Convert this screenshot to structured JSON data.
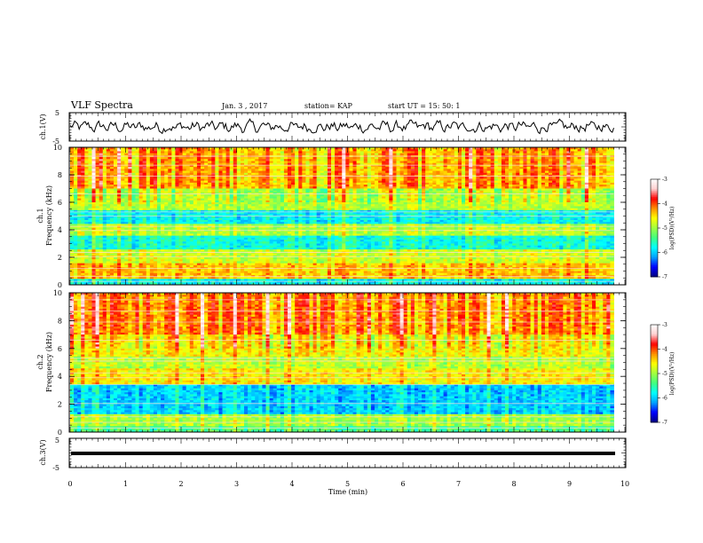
{
  "header": {
    "title": "VLF Spectra",
    "date": "Jan. 3 , 2017",
    "station": "station= KAP",
    "start": "start UT = 15: 50: 1"
  },
  "chart_data": [
    {
      "type": "line",
      "name": "ch1-waveform",
      "ylabel": "ch.1(V)",
      "ylim": [
        -5,
        5
      ],
      "yticks": [
        "5",
        "-5"
      ],
      "xlim": [
        0,
        10
      ],
      "x_coverage_min": [
        0,
        9.8
      ],
      "description_values": "noisy voltage trace fluctuating roughly between -2 and +2 V around 0"
    },
    {
      "type": "heatmap",
      "name": "ch1-spectrogram",
      "ylabel": "ch.1\nFrequency (kHz)",
      "ylim": [
        0,
        10
      ],
      "yticks": [
        "0",
        "2",
        "4",
        "6",
        "8",
        "10"
      ],
      "xlim": [
        0,
        10
      ],
      "x_coverage_min": [
        0,
        9.8
      ],
      "colorbar": {
        "label": "log(PSD)(V²/Hz)",
        "range": [
          -7,
          -3
        ],
        "ticks": [
          "-3",
          "-4",
          "-5",
          "-6",
          "-7"
        ]
      },
      "bands": [
        {
          "f_low": 0,
          "f_high": 0.4,
          "level": -5.8
        },
        {
          "f_low": 0.4,
          "f_high": 1.6,
          "level": -4.4
        },
        {
          "f_low": 1.6,
          "f_high": 2.6,
          "level": -4.8
        },
        {
          "f_low": 2.6,
          "f_high": 3.6,
          "level": -5.7
        },
        {
          "f_low": 3.6,
          "f_high": 4.4,
          "level": -4.9
        },
        {
          "f_low": 4.4,
          "f_high": 5.4,
          "level": -5.8
        },
        {
          "f_low": 5.4,
          "f_high": 7.0,
          "level": -4.9
        },
        {
          "f_low": 7.0,
          "f_high": 10.0,
          "level": -4.3
        }
      ],
      "lines_khz": [
        0.25,
        0.6,
        1.2,
        2.05,
        2.35,
        3.95,
        4.25,
        5.0,
        5.3,
        6.6,
        7.9,
        8.7,
        9.35
      ]
    },
    {
      "type": "heatmap",
      "name": "ch2-spectrogram",
      "ylabel": "ch.2\nFrequency (kHz)",
      "ylim": [
        0,
        10
      ],
      "yticks": [
        "0",
        "2",
        "4",
        "6",
        "8",
        "10"
      ],
      "xlim": [
        0,
        10
      ],
      "x_coverage_min": [
        0,
        9.8
      ],
      "colorbar": {
        "label": "log(PSD)(V²/Hz)",
        "range": [
          -7,
          -3
        ],
        "ticks": [
          "-3",
          "-4",
          "-5",
          "-6",
          "-7"
        ]
      },
      "bands": [
        {
          "f_low": 0,
          "f_high": 0.5,
          "level": -5.4
        },
        {
          "f_low": 0.5,
          "f_high": 1.3,
          "level": -5.0
        },
        {
          "f_low": 1.3,
          "f_high": 3.4,
          "level": -6.0
        },
        {
          "f_low": 3.4,
          "f_high": 4.6,
          "level": -4.6
        },
        {
          "f_low": 4.6,
          "f_high": 5.5,
          "level": -4.9
        },
        {
          "f_low": 5.5,
          "f_high": 7.0,
          "level": -4.6
        },
        {
          "f_low": 7.0,
          "f_high": 10.0,
          "level": -4.2
        }
      ],
      "lines_khz": [
        0.3,
        0.7,
        1.1,
        2.05,
        3.4,
        3.9,
        4.25,
        5.1,
        5.3,
        6.6,
        7.9,
        8.7,
        9.5
      ]
    },
    {
      "type": "line",
      "name": "ch3-waveform",
      "ylabel": "ch.3(V)",
      "ylim": [
        -5,
        5
      ],
      "yticks": [
        "5",
        "-5"
      ],
      "xlim": [
        0,
        10
      ],
      "x_coverage_min": [
        0,
        9.8
      ],
      "description_values": "flat thick line at about 0 V"
    }
  ],
  "xaxis": {
    "label": "Time (min)",
    "ticks": [
      "0",
      "1",
      "2",
      "3",
      "4",
      "5",
      "6",
      "7",
      "8",
      "9",
      "10"
    ]
  },
  "colors": {
    "colormap": [
      "#00007f",
      "#0000ff",
      "#00a0ff",
      "#00ffff",
      "#40ff80",
      "#a0ff40",
      "#ffff00",
      "#ff9000",
      "#ff0000",
      "#ffd0d0",
      "#ffffff"
    ]
  }
}
